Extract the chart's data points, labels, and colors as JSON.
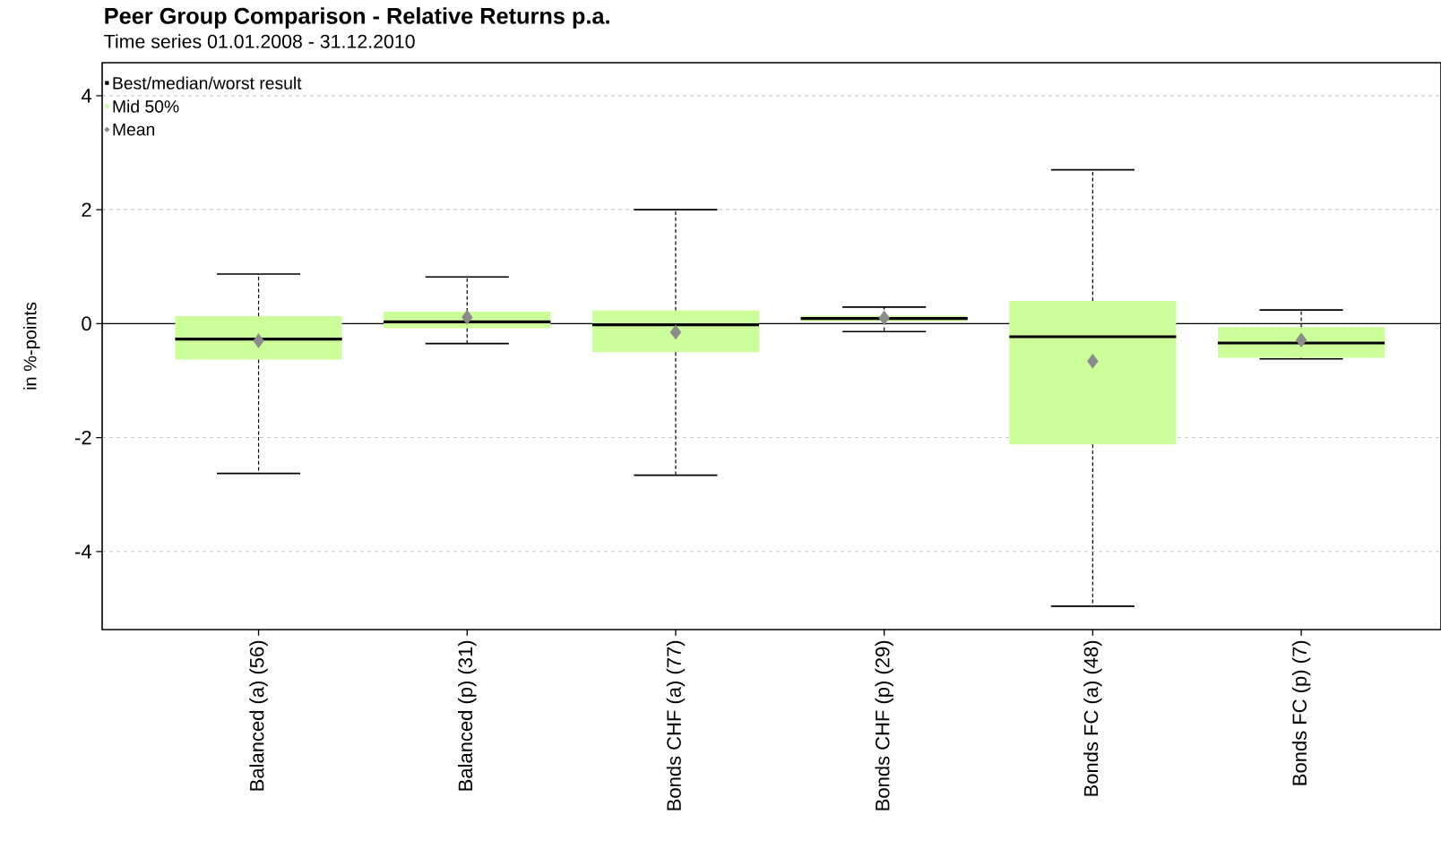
{
  "chart_data": {
    "type": "box",
    "title": "Peer Group Comparison - Relative Returns p.a.",
    "subtitle": "Time series 01.01.2008 - 31.12.2010",
    "ylabel": "in %-points",
    "categories": [
      "Balanced (a) (56)",
      "Balanced (p) (31)",
      "Bonds CHF (a) (77)",
      "Bonds CHF (p) (29)",
      "Bonds FC (a) (48)",
      "Bonds FC (p) (7)"
    ],
    "series": [
      {
        "type": "box",
        "name": "Mid 50%",
        "color": "#ccff99",
        "boxes": [
          {
            "low": -2.63,
            "q1": -0.63,
            "median": -0.27,
            "q3": 0.13,
            "high": 0.87
          },
          {
            "low": -0.35,
            "q1": -0.08,
            "median": 0.03,
            "q3": 0.21,
            "high": 0.82
          },
          {
            "low": -2.66,
            "q1": -0.5,
            "median": -0.02,
            "q3": 0.23,
            "high": 2.0
          },
          {
            "low": -0.14,
            "q1": 0.04,
            "median": 0.09,
            "q3": 0.14,
            "high": 0.29
          },
          {
            "low": -4.96,
            "q1": -2.12,
            "median": -0.23,
            "q3": 0.4,
            "high": 2.7
          },
          {
            "low": -0.62,
            "q1": -0.6,
            "median": -0.34,
            "q3": -0.06,
            "high": 0.24
          }
        ]
      },
      {
        "type": "scatter",
        "name": "Mean",
        "color": "#8c8c8c",
        "marker": "diamond",
        "x": [
          "Balanced (a) (56)",
          "Balanced (p) (31)",
          "Bonds CHF (a) (77)",
          "Bonds CHF (p) (29)",
          "Bonds FC (a) (48)",
          "Bonds FC (p) (7)"
        ],
        "values": [
          -0.3,
          0.11,
          -0.15,
          0.1,
          -0.66,
          -0.29
        ]
      }
    ],
    "annotations": [
      "Best/median/worst result"
    ],
    "ref_lines": [
      {
        "axis": "y",
        "value": 0,
        "color": "#000000"
      }
    ],
    "ylim": [
      -5.37,
      4.58
    ],
    "yticks": [
      -4,
      -2,
      0,
      2,
      4
    ],
    "grid": "y",
    "legend": "top left"
  }
}
